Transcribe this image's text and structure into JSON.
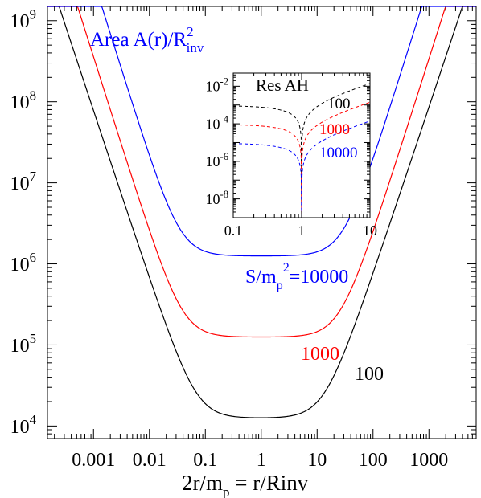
{
  "chart_data": [
    {
      "type": "line",
      "title": "Area  A(r)/R",
      "title_sup": "2",
      "title_sub": "inv",
      "xlabel": "2r/m",
      "xlabel_sub": "p",
      "xlabel_rest": " = r/Rinv",
      "xscale": "log",
      "yscale": "log",
      "xlim": [
        0.00015,
        7000
      ],
      "ylim": [
        7000,
        1500000000
      ],
      "x_ticks": [
        {
          "value": 0.001,
          "label": "0.001"
        },
        {
          "value": 0.01,
          "label": "0.01"
        },
        {
          "value": 0.1,
          "label": "0.1"
        },
        {
          "value": 1,
          "label": "1"
        },
        {
          "value": 10,
          "label": "10"
        },
        {
          "value": 100,
          "label": "100"
        },
        {
          "value": 1000,
          "label": "1000"
        }
      ],
      "y_ticks": [
        {
          "value": 10000,
          "base": "10",
          "exp": "4"
        },
        {
          "value": 100000,
          "base": "10",
          "exp": "5"
        },
        {
          "value": 1000000,
          "base": "10",
          "exp": "6"
        },
        {
          "value": 10000000,
          "base": "10",
          "exp": "7"
        },
        {
          "value": 100000000,
          "base": "10",
          "exp": "8"
        },
        {
          "value": 1000000000,
          "base": "10",
          "exp": "9"
        }
      ],
      "series": [
        {
          "name": "100",
          "color": "#000000",
          "plateau": 12500
        },
        {
          "name": "1000",
          "color": "#ff0000",
          "plateau": 125000
        },
        {
          "name": "10000",
          "color": "#0000ff",
          "plateau": 1250000
        }
      ],
      "series_labels": [
        {
          "text": "S/m",
          "sub": "p",
          "sup": "2",
          "suffix": "=10000",
          "color": "#0000ff"
        },
        {
          "text": "1000",
          "color": "#ff0000"
        },
        {
          "text": "100",
          "color": "#000000"
        }
      ],
      "legend": "none",
      "grid": false
    },
    {
      "type": "line",
      "title": "Res AH",
      "xscale": "log",
      "yscale": "log",
      "xlim": [
        0.1,
        10
      ],
      "ylim": [
        1e-09,
        0.05
      ],
      "x_ticks": [
        {
          "value": 0.1,
          "label": "0.1"
        },
        {
          "value": 1,
          "label": "1"
        },
        {
          "value": 10,
          "label": "10"
        }
      ],
      "y_ticks": [
        {
          "value": 1e-08,
          "base": "10",
          "exp": "-8"
        },
        {
          "value": 1e-06,
          "base": "10",
          "exp": "-6"
        },
        {
          "value": 0.0001,
          "base": "10",
          "exp": "-4"
        },
        {
          "value": 0.01,
          "base": "10",
          "exp": "-2"
        }
      ],
      "series": [
        {
          "name": "100",
          "color": "#000000",
          "dash": true,
          "endpoint_value": 0.015
        },
        {
          "name": "1000",
          "color": "#ff0000",
          "dash": true,
          "endpoint_value": 0.0015
        },
        {
          "name": "10000",
          "color": "#0000ff",
          "dash": true,
          "endpoint_value": 0.00015
        }
      ],
      "legend": "none",
      "grid": false
    }
  ]
}
